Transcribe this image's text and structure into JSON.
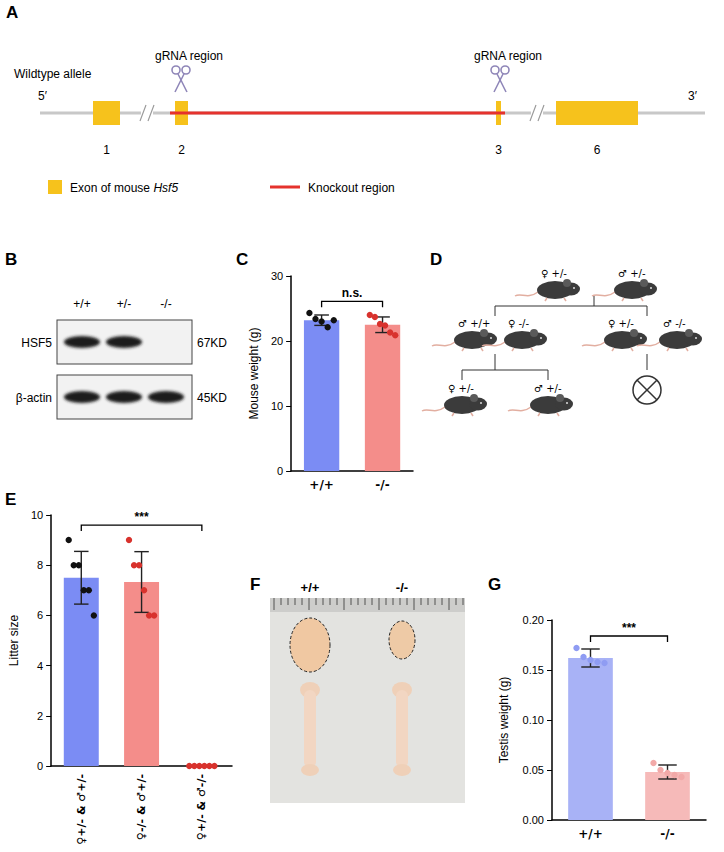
{
  "figure": {
    "A": {
      "label": "A",
      "allele": "Wildtype allele",
      "five_prime": "5′",
      "three_prime": "3′",
      "grna_labels": [
        "gRNA region",
        "gRNA region"
      ],
      "exons": [
        "1",
        "2",
        "3",
        "6"
      ],
      "legend": {
        "exon": [
          "Exon of mouse",
          "Hsf5"
        ],
        "knockout": "Knockout region"
      }
    },
    "B": {
      "label": "B",
      "genotypes": [
        "+/+",
        "+/-",
        "-/-"
      ],
      "rows": [
        {
          "protein": "HSF5",
          "size": "67KD",
          "bands": [
            true,
            true,
            false
          ]
        },
        {
          "protein": "β-actin",
          "size": "45KD",
          "bands": [
            true,
            true,
            true
          ]
        }
      ]
    },
    "D": {
      "label": "D",
      "parents": [
        "♀ +/-",
        "♂ +/-"
      ],
      "crosses": [
        {
          "mice": [
            "♂ +/+",
            "♀ -/-"
          ],
          "offspring": [
            "♀ +/-",
            "♂ +/-"
          ]
        },
        {
          "mice": [
            "♀ +/-",
            "♂ -/-"
          ],
          "offspring": null
        }
      ]
    },
    "F": {
      "label": "F",
      "genotypes": [
        "+/+",
        "-/-"
      ]
    }
  },
  "chart_data": [
    {
      "panel": "C",
      "type": "bar",
      "categories": [
        "+/+",
        "-/-"
      ],
      "values": [
        23.2,
        22.5
      ],
      "errors": [
        0.8,
        1.2
      ],
      "points": [
        [
          24.3,
          23.4,
          23.0,
          22.1,
          23.2
        ],
        [
          24.0,
          23.7,
          22.6,
          22.4,
          21.3,
          20.9
        ]
      ],
      "colors": [
        "#7b8cf4",
        "#f48d8a"
      ],
      "ylabel": "Mouse weight (g)",
      "ylim": [
        0,
        30
      ],
      "yticks": [
        0,
        10,
        20,
        30
      ],
      "grid": false,
      "annotations": [
        {
          "text": "n.s.",
          "from": 0,
          "to": 1
        }
      ]
    },
    {
      "panel": "E",
      "type": "bar",
      "categories": [
        "♀+/- & ♂+/-",
        "♀-/- & ♂+/-",
        "♀+/- & ♂-/-"
      ],
      "values": [
        7.5,
        7.33,
        0
      ],
      "errors": [
        1.05,
        1.21,
        0
      ],
      "points": [
        [
          9,
          8,
          8,
          7,
          7,
          6
        ],
        [
          9,
          8,
          8,
          7,
          6,
          6
        ],
        [
          0,
          0,
          0,
          0,
          0,
          0
        ]
      ],
      "colors": [
        "#7b8cf4",
        "#f48d8a",
        "#f48d8a"
      ],
      "ylabel": "Litter size",
      "ylim": [
        0,
        10
      ],
      "yticks": [
        0,
        2,
        4,
        6,
        8,
        10
      ],
      "grid": false,
      "annotations": [
        {
          "text": "***",
          "from": 0,
          "to": 2
        }
      ]
    },
    {
      "panel": "G",
      "type": "bar",
      "categories": [
        "+/+",
        "-/-"
      ],
      "values": [
        0.162,
        0.048
      ],
      "errors": [
        0.009,
        0.007
      ],
      "points": [
        [
          0.172,
          0.163,
          0.16,
          0.158,
          0.157
        ],
        [
          0.057,
          0.05,
          0.047,
          0.045,
          0.043
        ]
      ],
      "colors": [
        "#a8b2f6",
        "#f6bab9"
      ],
      "ylabel": "Testis weight (g)",
      "ylim": [
        0,
        0.2
      ],
      "yticks": [
        {
          "value": 0,
          "label": "0.00"
        },
        {
          "value": 0.05,
          "label": "0.05"
        },
        {
          "value": 0.1,
          "label": "0.10"
        },
        {
          "value": 0.15,
          "label": "0.15"
        },
        {
          "value": 0.2,
          "label": "0.20"
        }
      ],
      "grid": false,
      "annotations": [
        {
          "text": "***",
          "from": 0,
          "to": 1
        }
      ]
    }
  ]
}
